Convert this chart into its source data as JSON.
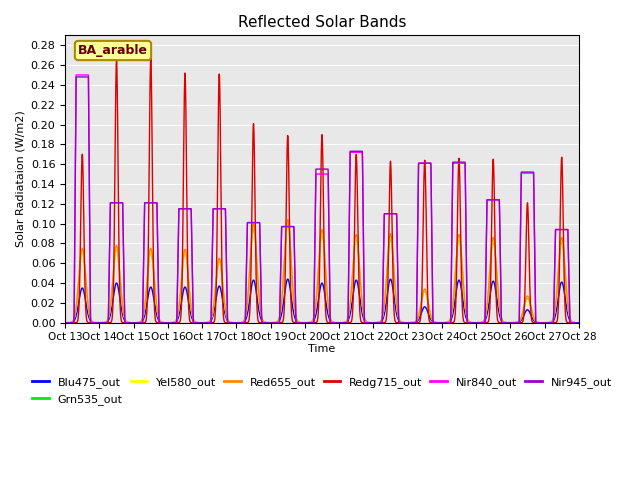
{
  "title": "Reflected Solar Bands",
  "xlabel": "Time",
  "ylabel": "Solar Radiataion (W/m2)",
  "annotation": "BA_arable",
  "ylim": [
    0,
    0.29
  ],
  "yticks": [
    0.0,
    0.02,
    0.04,
    0.06,
    0.08,
    0.1,
    0.12,
    0.14,
    0.16,
    0.18,
    0.2,
    0.22,
    0.24,
    0.26,
    0.28
  ],
  "xtick_labels": [
    "Oct 13",
    "Oct 14",
    "Oct 15",
    "Oct 16",
    "Oct 17",
    "Oct 18",
    "Oct 19",
    "Oct 20",
    "Oct 21",
    "Oct 22",
    "Oct 23",
    "Oct 24",
    "Oct 25",
    "Oct 26",
    "Oct 27",
    "Oct 28"
  ],
  "series": {
    "Blu475_out": {
      "color": "#0000ff",
      "lw": 1.0
    },
    "Grn535_out": {
      "color": "#00ee00",
      "lw": 1.0
    },
    "Yel580_out": {
      "color": "#ffff00",
      "lw": 1.0
    },
    "Red655_out": {
      "color": "#ff8800",
      "lw": 1.0
    },
    "Redg715_out": {
      "color": "#dd0000",
      "lw": 1.0
    },
    "Nir840_out": {
      "color": "#ff00ff",
      "lw": 1.0
    },
    "Nir945_out": {
      "color": "#9900cc",
      "lw": 1.0
    }
  },
  "bg_color": "#e8e8e8",
  "annotation_bg": "#ffff99",
  "annotation_border": "#aa8800",
  "n_days": 15,
  "pts_per_day": 240,
  "blu_peaks": [
    0.035,
    0.04,
    0.036,
    0.036,
    0.037,
    0.043,
    0.044,
    0.04,
    0.043,
    0.044,
    0.016,
    0.043,
    0.042,
    0.013,
    0.041
  ],
  "grn_peaks": [
    0.073,
    0.075,
    0.072,
    0.071,
    0.063,
    0.095,
    0.1,
    0.09,
    0.085,
    0.085,
    0.032,
    0.085,
    0.082,
    0.025,
    0.082
  ],
  "yel_peaks": [
    0.073,
    0.076,
    0.073,
    0.072,
    0.064,
    0.098,
    0.102,
    0.092,
    0.087,
    0.087,
    0.033,
    0.087,
    0.084,
    0.026,
    0.084
  ],
  "red_peaks": [
    0.075,
    0.078,
    0.075,
    0.074,
    0.065,
    0.1,
    0.104,
    0.094,
    0.089,
    0.09,
    0.034,
    0.089,
    0.086,
    0.027,
    0.086
  ],
  "redg_peaks": [
    0.17,
    0.265,
    0.266,
    0.252,
    0.251,
    0.201,
    0.189,
    0.19,
    0.17,
    0.163,
    0.164,
    0.166,
    0.165,
    0.121,
    0.167
  ],
  "nir840_peaks": [
    0.25,
    0.121,
    0.121,
    0.115,
    0.115,
    0.101,
    0.097,
    0.15,
    0.172,
    0.11,
    0.161,
    0.161,
    0.124,
    0.151,
    0.094
  ],
  "nir945_peaks": [
    0.248,
    0.121,
    0.121,
    0.115,
    0.115,
    0.101,
    0.097,
    0.155,
    0.173,
    0.11,
    0.161,
    0.162,
    0.124,
    0.152,
    0.094
  ]
}
